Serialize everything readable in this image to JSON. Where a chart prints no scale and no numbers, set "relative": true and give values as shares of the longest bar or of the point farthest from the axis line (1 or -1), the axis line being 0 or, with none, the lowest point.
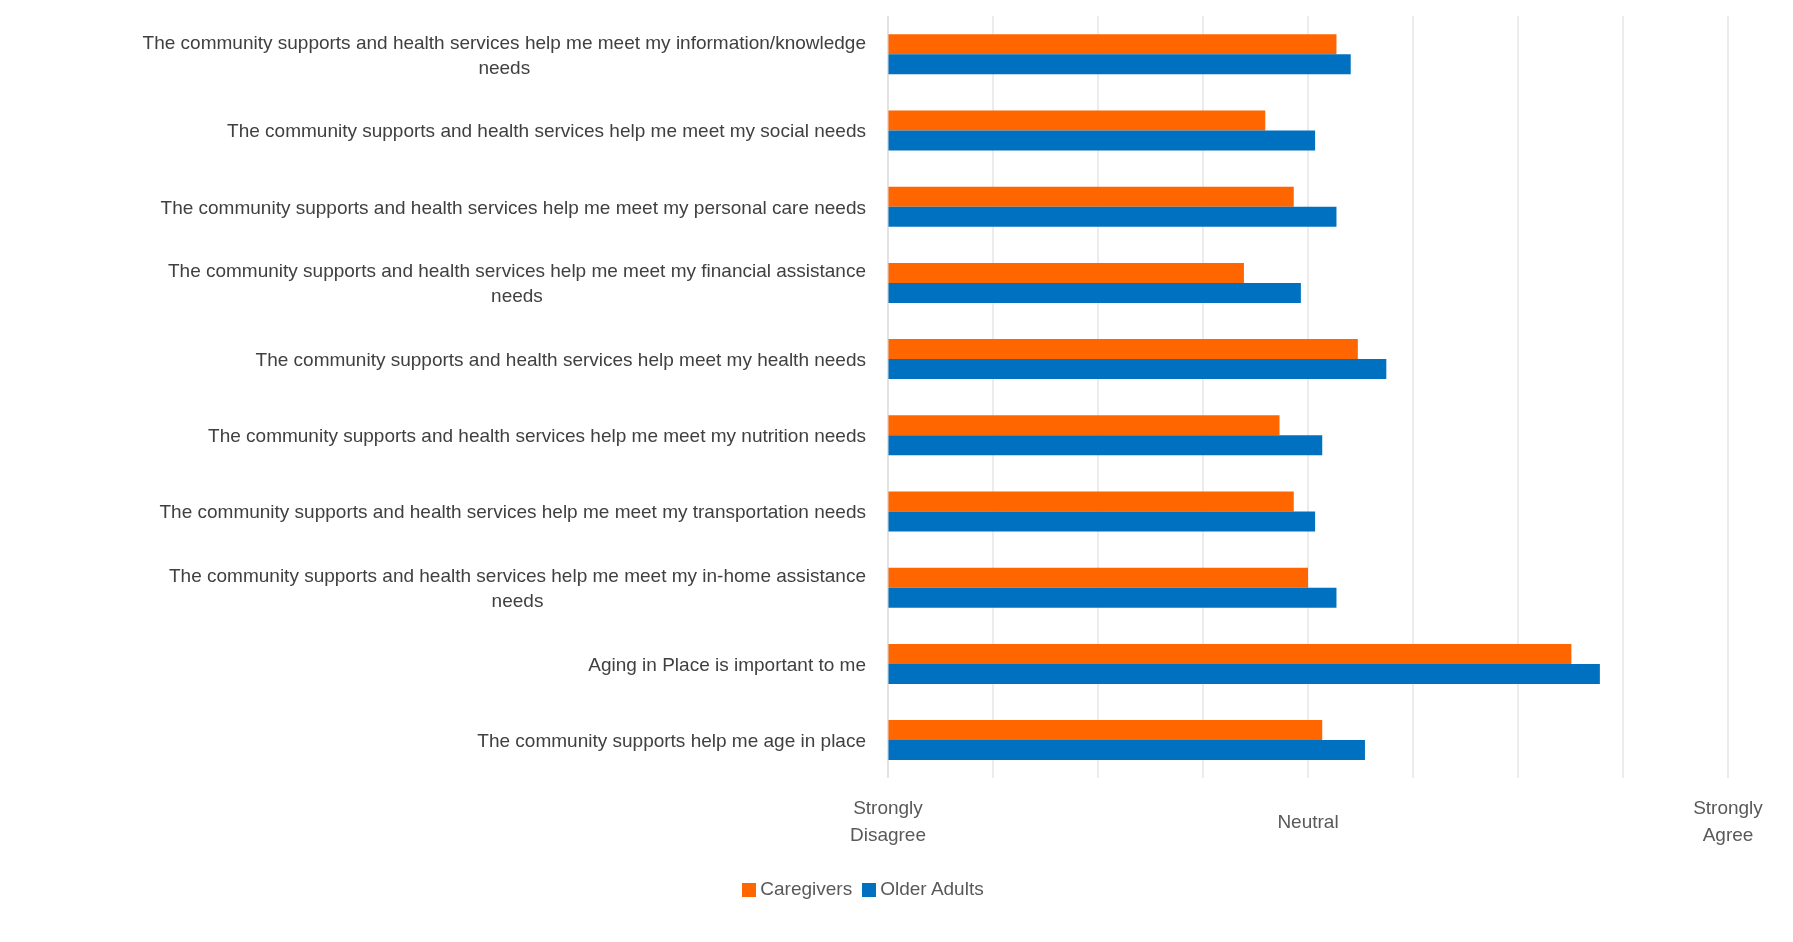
{
  "chart_data": {
    "type": "bar",
    "orientation": "horizontal",
    "relative": true,
    "categories": [
      "The community supports and health services help me meet my information/knowledge needs",
      "The community supports and health services help me meet my social needs",
      "The community supports and health services help me meet my personal care needs",
      "The community supports and health services help me meet my financial assistance needs",
      "The community supports and health services help meet my health needs",
      "The community supports and health services help me meet my nutrition needs",
      "The community supports and health services help me meet my transportation needs",
      "The community supports and health services help me meet my in-home assistance needs",
      "Aging in Place is important to me",
      "The community supports help me age in place"
    ],
    "series": [
      {
        "name": "Caregivers",
        "color": "#ff6600",
        "values": [
          0.63,
          0.53,
          0.57,
          0.5,
          0.66,
          0.55,
          0.57,
          0.59,
          0.96,
          0.61
        ]
      },
      {
        "name": "Older Adults",
        "color": "#0070c0",
        "values": [
          0.65,
          0.6,
          0.63,
          0.58,
          0.7,
          0.61,
          0.6,
          0.63,
          1,
          0.67
        ]
      }
    ],
    "annotations": [
      "Strongly Disagree",
      "Neutral",
      "Strongly Agree"
    ],
    "grid": "x",
    "legend": "bottom"
  }
}
